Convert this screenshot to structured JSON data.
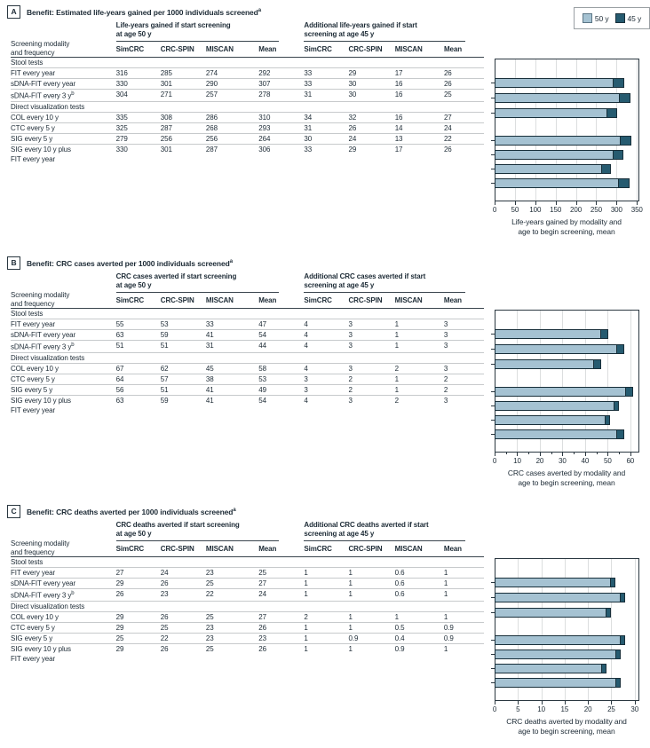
{
  "colors": {
    "bar_light": "#a5c2d2",
    "bar_dark": "#265b70",
    "bar_border": "#182f3a",
    "text": "#1c2a35",
    "rule_dark": "#39444d",
    "rule_light": "#c7cacc",
    "grid": "#dcdedf",
    "legend_border": "#9aa0a4"
  },
  "legend": {
    "items": [
      {
        "label": "50 y",
        "swatch": "light"
      },
      {
        "label": "45 y",
        "swatch": "dark"
      }
    ]
  },
  "table_header": {
    "col1_line1": "Screening modality",
    "col1_line2": "and frequency",
    "models": [
      "SimCRC",
      "CRC-SPIN",
      "MISCAN",
      "Mean"
    ]
  },
  "panels": [
    {
      "label": "A",
      "title": "Benefit: Estimated life-years gained per 1000 individuals screened",
      "title_sup": "a",
      "group50_line1": "Life-years gained if start screening",
      "group50_line2": "at age 50 y",
      "group45_line1": "Additional life-years gained if start",
      "group45_line2": "screening at age 45 y",
      "sections": [
        {
          "header": "Stool tests",
          "rows": [
            {
              "label": "FIT every year",
              "values": [
                "316",
                "285",
                "274",
                "292",
                "33",
                "29",
                "17",
                "26"
              ]
            },
            {
              "label": "sDNA-FIT every year",
              "values": [
                "330",
                "301",
                "290",
                "307",
                "33",
                "30",
                "16",
                "26"
              ]
            },
            {
              "label": "sDNA-FIT every 3 y",
              "sup": "b",
              "values": [
                "304",
                "271",
                "257",
                "278",
                "31",
                "30",
                "16",
                "25"
              ]
            }
          ]
        },
        {
          "header": "Direct visualization tests",
          "rows": [
            {
              "label": "COL every 10 y",
              "values": [
                "335",
                "308",
                "286",
                "310",
                "34",
                "32",
                "16",
                "27"
              ]
            },
            {
              "label": "CTC every 5 y",
              "values": [
                "325",
                "287",
                "268",
                "293",
                "31",
                "26",
                "14",
                "24"
              ]
            },
            {
              "label": "SIG every 5 y",
              "values": [
                "279",
                "256",
                "256",
                "264",
                "30",
                "24",
                "13",
                "22"
              ]
            },
            {
              "label": "SIG every 10 y plus",
              "label_line2": "FIT every year",
              "values": [
                "330",
                "301",
                "287",
                "306",
                "33",
                "29",
                "17",
                "26"
              ]
            }
          ]
        }
      ]
    },
    {
      "label": "B",
      "title": "Benefit: CRC cases averted per 1000 individuals screened",
      "title_sup": "a",
      "group50_line1": "CRC cases averted if start screening",
      "group50_line2": "at age 50 y",
      "group45_line1": "Additional CRC cases averted if start",
      "group45_line2": "screening at age 45 y",
      "sections": [
        {
          "header": "Stool tests",
          "rows": [
            {
              "label": "FIT every year",
              "values": [
                "55",
                "53",
                "33",
                "47",
                "4",
                "3",
                "1",
                "3"
              ]
            },
            {
              "label": "sDNA-FIT every year",
              "values": [
                "63",
                "59",
                "41",
                "54",
                "4",
                "3",
                "1",
                "3"
              ]
            },
            {
              "label": "sDNA-FIT every 3 y",
              "sup": "b",
              "values": [
                "51",
                "51",
                "31",
                "44",
                "4",
                "3",
                "1",
                "3"
              ]
            }
          ]
        },
        {
          "header": "Direct visualization tests",
          "rows": [
            {
              "label": "COL every 10 y",
              "values": [
                "67",
                "62",
                "45",
                "58",
                "4",
                "3",
                "2",
                "3"
              ]
            },
            {
              "label": "CTC every 5 y",
              "values": [
                "64",
                "57",
                "38",
                "53",
                "3",
                "2",
                "1",
                "2"
              ]
            },
            {
              "label": "SIG every 5 y",
              "values": [
                "56",
                "51",
                "41",
                "49",
                "3",
                "2",
                "1",
                "2"
              ]
            },
            {
              "label": "SIG every 10 y plus",
              "label_line2": "FIT every year",
              "values": [
                "63",
                "59",
                "41",
                "54",
                "4",
                "3",
                "2",
                "3"
              ]
            }
          ]
        }
      ]
    },
    {
      "label": "C",
      "title": "Benefit: CRC deaths averted per 1000 individuals screened",
      "title_sup": "a",
      "group50_line1": "CRC deaths averted if start screening",
      "group50_line2": "at age 50 y",
      "group45_line1": "Additional CRC deaths averted if start",
      "group45_line2": "screening at age 45 y",
      "sections": [
        {
          "header": "Stool tests",
          "rows": [
            {
              "label": "FIT every year",
              "values": [
                "27",
                "24",
                "23",
                "25",
                "1",
                "1",
                "0.6",
                "1"
              ]
            },
            {
              "label": "sDNA-FIT every year",
              "values": [
                "29",
                "26",
                "25",
                "27",
                "1",
                "1",
                "0.6",
                "1"
              ]
            },
            {
              "label": "sDNA-FIT every 3 y",
              "sup": "b",
              "values": [
                "26",
                "23",
                "22",
                "24",
                "1",
                "1",
                "0.6",
                "1"
              ]
            }
          ]
        },
        {
          "header": "Direct visualization tests",
          "rows": [
            {
              "label": "COL every 10 y",
              "values": [
                "29",
                "26",
                "25",
                "27",
                "2",
                "1",
                "1",
                "1"
              ]
            },
            {
              "label": "CTC every 5 y",
              "values": [
                "29",
                "25",
                "23",
                "26",
                "1",
                "1",
                "0.5",
                "0.9"
              ]
            },
            {
              "label": "SIG every 5 y",
              "values": [
                "25",
                "22",
                "23",
                "23",
                "1",
                "0.9",
                "0.4",
                "0.9"
              ]
            },
            {
              "label": "SIG every 10 y plus",
              "label_line2": "FIT every year",
              "values": [
                "29",
                "26",
                "25",
                "26",
                "1",
                "1",
                "0.9",
                "1"
              ]
            }
          ]
        }
      ]
    }
  ],
  "chart_data": [
    {
      "type": "bar",
      "orientation": "horizontal-stacked",
      "categories": [
        "FIT every year",
        "sDNA-FIT every year",
        "sDNA-FIT every 3 y",
        "COL every 10 y",
        "CTC every 5 y",
        "SIG every 5 y",
        "SIG every 10 y plus FIT every year"
      ],
      "series": [
        {
          "name": "50 y",
          "values": [
            292,
            307,
            278,
            310,
            293,
            264,
            306
          ]
        },
        {
          "name": "45 y",
          "values": [
            26,
            26,
            25,
            27,
            24,
            22,
            26
          ]
        }
      ],
      "title": "",
      "xlabel_line1": "Life-years gained by modality and",
      "xlabel_line2": "age to begin screening, mean",
      "ticks": [
        0,
        50,
        100,
        150,
        200,
        250,
        300,
        350
      ],
      "xlim": [
        0,
        356
      ],
      "minor_tick_step": 0,
      "grid": true,
      "legend_position": "top-right"
    },
    {
      "type": "bar",
      "orientation": "horizontal-stacked",
      "categories": [
        "FIT every year",
        "sDNA-FIT every year",
        "sDNA-FIT every 3 y",
        "COL every 10 y",
        "CTC every 5 y",
        "SIG every 5 y",
        "SIG every 10 y plus FIT every year"
      ],
      "series": [
        {
          "name": "50 y",
          "values": [
            47,
            54,
            44,
            58,
            53,
            49,
            54
          ]
        },
        {
          "name": "45 y",
          "values": [
            3,
            3,
            3,
            3,
            2,
            2,
            3
          ]
        }
      ],
      "title": "",
      "xlabel_line1": "CRC cases averted by modality and",
      "xlabel_line2": "age to begin screening, mean",
      "ticks": [
        0,
        10,
        20,
        30,
        40,
        50,
        60
      ],
      "xlim": [
        0,
        64
      ],
      "minor_tick_step": 5,
      "grid": true,
      "legend_position": "none"
    },
    {
      "type": "bar",
      "orientation": "horizontal-stacked",
      "categories": [
        "FIT every year",
        "sDNA-FIT every year",
        "sDNA-FIT every 3 y",
        "COL every 10 y",
        "CTC every 5 y",
        "SIG every 5 y",
        "SIG every 10 y plus FIT every year"
      ],
      "series": [
        {
          "name": "50 y",
          "values": [
            25,
            27,
            24,
            27,
            26,
            23,
            26
          ]
        },
        {
          "name": "45 y",
          "values": [
            1,
            1,
            1,
            1,
            0.9,
            0.9,
            1
          ]
        }
      ],
      "title": "",
      "xlabel_line1": "CRC deaths averted by modality and",
      "xlabel_line2": "age to begin screening, mean",
      "ticks": [
        0,
        5,
        10,
        15,
        20,
        25,
        30
      ],
      "xlim": [
        0,
        31
      ],
      "minor_tick_step": 0,
      "grid": true,
      "legend_position": "none"
    }
  ]
}
